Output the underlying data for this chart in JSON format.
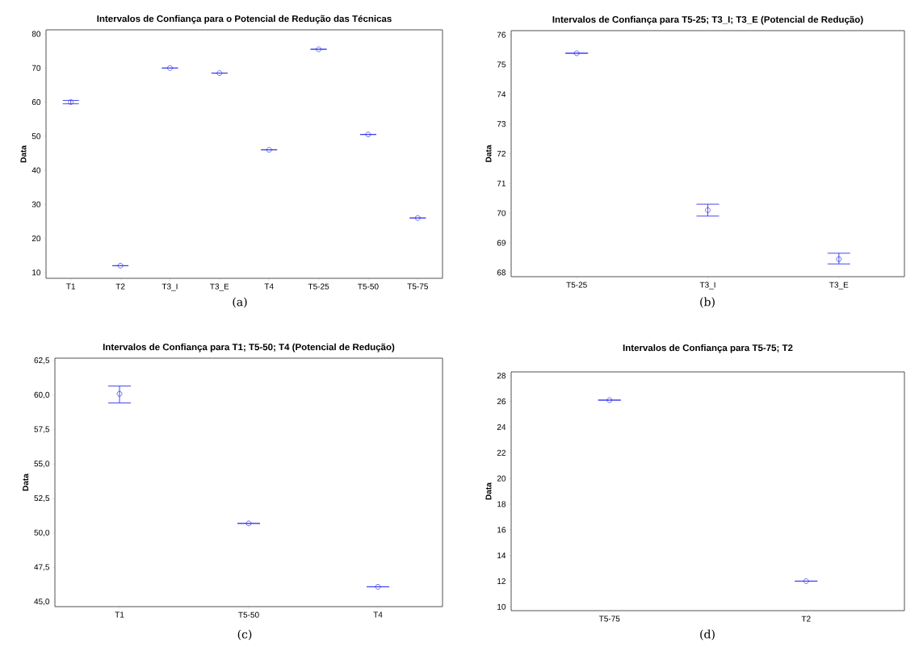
{
  "chart_data": [
    {
      "type": "scatter",
      "title": "Intervalos de Confiança para o Potencial de Redução das Técnicas",
      "ylabel": "Data",
      "annotations": [
        "(a)"
      ],
      "categories": [
        "T1",
        "T2",
        "T3_I",
        "T3_E",
        "T4",
        "T5-25",
        "T5-50",
        "T5-75"
      ],
      "marker": "circle",
      "color": "#3333ee",
      "values": [
        60,
        12,
        70,
        68.5,
        46,
        75.5,
        50.5,
        26
      ],
      "errors": [
        [
          59.5,
          60.5
        ],
        0,
        0,
        0,
        0,
        0,
        0,
        0
      ],
      "ylim": [
        8.3,
        81.2
      ],
      "yticks": [
        10,
        20,
        30,
        40,
        50,
        60,
        70,
        80
      ]
    },
    {
      "type": "scatter",
      "title": "Intervalos de Confiança para T5-25; T3_I; T3_E (Potencial de Redução)",
      "ylabel": "Data",
      "annotations": [
        "(b)"
      ],
      "categories": [
        "T5-25",
        "T3_I",
        "T3_E"
      ],
      "marker": "circle",
      "color": "#3333ee",
      "values": [
        75.38,
        70.1,
        68.45
      ],
      "errors": [
        0,
        [
          69.9,
          70.3
        ],
        [
          68.29,
          68.65
        ]
      ],
      "ylim": [
        67.86,
        76.14
      ],
      "yticks": [
        68,
        69,
        70,
        71,
        72,
        73,
        74,
        75,
        76
      ]
    },
    {
      "type": "scatter",
      "title": "Intervalos de Confiança para T1; T5-50; T4 (Potencial de Redução)",
      "ylabel": "Data",
      "annotations": [
        "(c)"
      ],
      "categories": [
        "T1",
        "T5-50",
        "T4"
      ],
      "marker": "circle",
      "color": "#3333ee",
      "values": [
        60.1,
        50.7,
        46.1
      ],
      "errors": [
        [
          59.44,
          60.67
        ],
        0,
        0
      ],
      "ylim": [
        44.66,
        62.69
      ],
      "yticks": [
        {
          "value": 45,
          "label": "45,0"
        },
        {
          "value": 47.5,
          "label": "47,5"
        },
        {
          "value": 50,
          "label": "50,0"
        },
        {
          "value": 52.5,
          "label": "52,5"
        },
        {
          "value": 55,
          "label": "55,0"
        },
        {
          "value": 57.5,
          "label": "57,5"
        },
        {
          "value": 60,
          "label": "60,0"
        },
        {
          "value": 62.5,
          "label": "62,5"
        }
      ]
    },
    {
      "type": "scatter",
      "title": "Intervalos de Confiança para T5-75; T2",
      "ylabel": "Data",
      "annotations": [
        "(d)"
      ],
      "categories": [
        "T5-75",
        "T2"
      ],
      "marker": "circle",
      "color": "#3333ee",
      "values": [
        26.1,
        12
      ],
      "errors": [
        0,
        0
      ],
      "ylim": [
        9.7,
        28.3
      ],
      "yticks": [
        10,
        12,
        14,
        16,
        18,
        20,
        22,
        24,
        26,
        28
      ]
    }
  ]
}
